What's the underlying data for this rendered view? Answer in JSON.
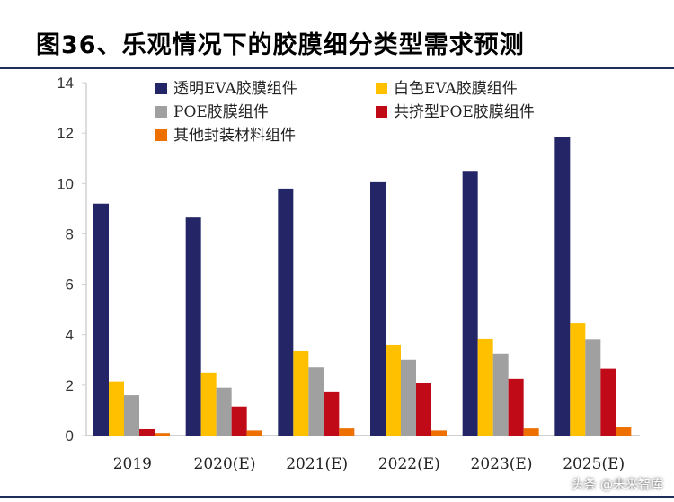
{
  "title": "图36、乐观情况下的胶膜细分类型需求预测",
  "watermark": "头条 @未来智库",
  "chart_data": {
    "type": "bar",
    "categories": [
      "2019",
      "2020(E)",
      "2021(E)",
      "2022(E)",
      "2023(E)",
      "2025(E)"
    ],
    "ylim": [
      0,
      14
    ],
    "yticks": [
      0,
      2,
      4,
      6,
      8,
      10,
      12,
      14
    ],
    "legend_position": "top",
    "grid": false,
    "series": [
      {
        "name": "透明EVA胶膜组件",
        "color": "#232567",
        "values": [
          9.2,
          8.65,
          9.8,
          10.05,
          10.5,
          11.85
        ]
      },
      {
        "name": "白色EVA胶膜组件",
        "color": "#ffc000",
        "values": [
          2.15,
          2.5,
          3.35,
          3.6,
          3.85,
          4.45
        ]
      },
      {
        "name": "POE胶膜组件",
        "color": "#a0a0a0",
        "values": [
          1.6,
          1.9,
          2.7,
          3.0,
          3.25,
          3.8
        ]
      },
      {
        "name": "共挤型POE胶膜组件",
        "color": "#c00a18",
        "values": [
          0.25,
          1.15,
          1.75,
          2.1,
          2.25,
          2.65
        ]
      },
      {
        "name": "其他封装材料组件",
        "color": "#ee7000",
        "values": [
          0.1,
          0.2,
          0.28,
          0.2,
          0.28,
          0.32
        ]
      }
    ]
  }
}
